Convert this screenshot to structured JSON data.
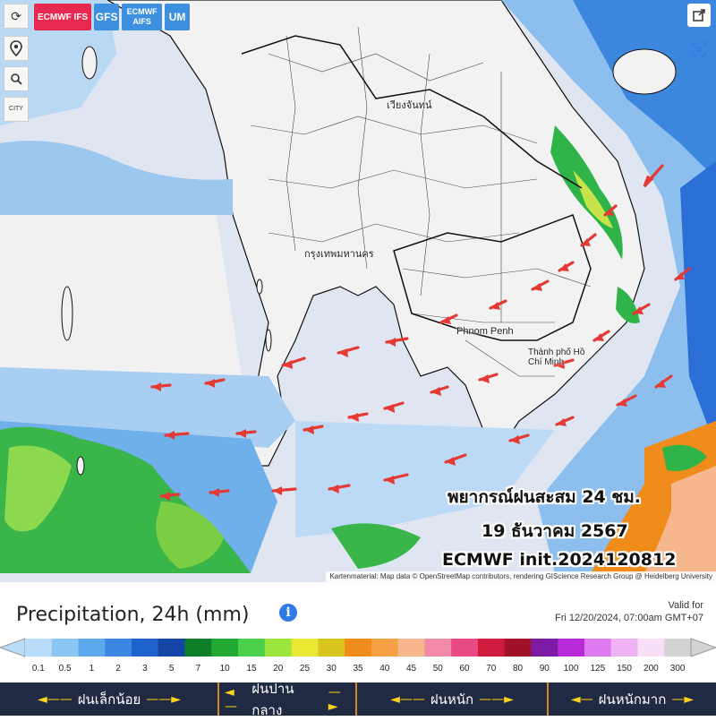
{
  "toolbar": {
    "models": [
      {
        "label": "ECMWF IFS",
        "active": true
      },
      {
        "label": "GFS",
        "active": false
      },
      {
        "label": "ECMWF AIFS",
        "active": false
      },
      {
        "label": "UM",
        "active": false
      }
    ],
    "tools": [
      {
        "icon": "refresh-icon",
        "symbol": "⟳"
      },
      {
        "icon": "location-pin-icon",
        "symbol": "⚲"
      },
      {
        "icon": "zoom-icon",
        "symbol": "🔍"
      },
      {
        "icon": "city-toggle-icon",
        "symbol": "CITY"
      }
    ],
    "share_icon": "share-icon",
    "fit_icon": "fit-view-icon"
  },
  "map": {
    "cities": [
      {
        "name": "Phnom Penh"
      },
      {
        "name": "Thành phố Hồ Chí Minh"
      },
      {
        "name": "กรุงเทพมหานคร"
      },
      {
        "name": "เวียงจันทน์"
      }
    ],
    "overlay": {
      "line1": "พยากรณ์ฝนสะสม 24 ชม.",
      "line2": "19 ธันวาคม 2567",
      "line3": "ECMWF init.2024120812"
    },
    "attribution": "Kartenmaterial: Map data © OpenStreetMap contributors, rendering GIScience Research Group @ Heidelberg University",
    "arrow_color": "#e53935"
  },
  "legend": {
    "title": "Precipitation, 24h (mm)",
    "info_icon": "info-icon",
    "valid_label": "Valid for",
    "valid_time": "Fri 12/20/2024, 07:00am GMT+07",
    "ticks": [
      "0.1",
      "0.5",
      "1",
      "2",
      "3",
      "5",
      "7",
      "10",
      "15",
      "20",
      "25",
      "30",
      "35",
      "40",
      "45",
      "50",
      "60",
      "70",
      "80",
      "90",
      "100",
      "125",
      "150",
      "200",
      "300"
    ],
    "colors": [
      "#b9dcf8",
      "#8cc6f5",
      "#5ea9ee",
      "#3a86e0",
      "#1f62cc",
      "#1546a6",
      "#0f7f2a",
      "#20a935",
      "#4bd04b",
      "#9be53e",
      "#e9e832",
      "#d8c61f",
      "#f08c1b",
      "#f5a043",
      "#f7b78d",
      "#f08aa8",
      "#ea4a83",
      "#cf1c3c",
      "#a01228",
      "#7d1ba7",
      "#b62ad8",
      "#e07af0",
      "#f0b3f5",
      "#f6dff7",
      "#d2d2d2"
    ],
    "categories": [
      {
        "label": "ฝนเล็กน้อย"
      },
      {
        "label": "ฝนปานกลาง"
      },
      {
        "label": "ฝนหนัก"
      },
      {
        "label": "ฝนหนักมาก"
      }
    ]
  }
}
